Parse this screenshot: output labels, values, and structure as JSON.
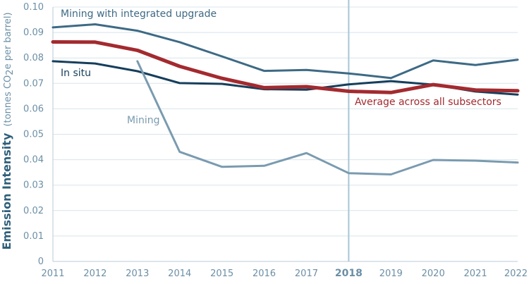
{
  "chart_data": {
    "type": "line",
    "title": "",
    "ylabel": "Emission Intensity",
    "ylabel_units_prefix": "(tonnes CO",
    "ylabel_units_subscript": "2",
    "ylabel_units_suffix": "e per barrel)",
    "xlabel": "",
    "ylim": [
      0,
      0.1
    ],
    "yticks": [
      "0",
      "0.01",
      "0.02",
      "0.03",
      "0.04",
      "0.05",
      "0.06",
      "0.07",
      "0.08",
      "0.09",
      "0.10"
    ],
    "ytick_values": [
      0,
      0.01,
      0.02,
      0.03,
      0.04,
      0.05,
      0.06,
      0.07,
      0.08,
      0.09,
      0.1
    ],
    "x": [
      "2011",
      "2012",
      "2013",
      "2014",
      "2015",
      "2016",
      "2017",
      "2018",
      "2019",
      "2020",
      "2021",
      "2022"
    ],
    "highlight_year": "2018",
    "grid": true,
    "series": [
      {
        "name": "Mining with integrated upgrade",
        "color": "#3d6a85",
        "values": [
          0.092,
          0.0932,
          0.0907,
          0.0862,
          0.0806,
          0.0749,
          0.0753,
          0.0739,
          0.0721,
          0.079,
          0.0772,
          0.0793
        ]
      },
      {
        "name": "In situ",
        "color": "#163e5c",
        "values": [
          0.0787,
          0.0778,
          0.0748,
          0.0701,
          0.0698,
          0.0677,
          0.0675,
          0.0696,
          0.0709,
          0.0695,
          0.0668,
          0.0656
        ]
      },
      {
        "name": "Mining",
        "color": "#7a9bb0",
        "values": [
          null,
          null,
          0.0787,
          0.0431,
          0.0372,
          0.0376,
          0.0426,
          0.0347,
          0.0342,
          0.0399,
          0.0396,
          0.0389
        ]
      },
      {
        "name": "Average across all subsectors",
        "color": "#a32a2f",
        "values": [
          0.0863,
          0.0862,
          0.083,
          0.0767,
          0.072,
          0.0683,
          0.0687,
          0.0669,
          0.0664,
          0.0695,
          0.0674,
          0.0671
        ]
      }
    ]
  }
}
